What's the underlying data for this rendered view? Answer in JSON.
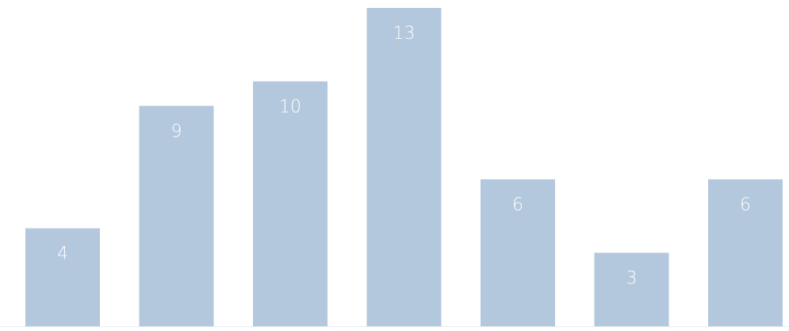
{
  "chart_data": {
    "type": "bar",
    "values": [
      4,
      9,
      10,
      13,
      6,
      3,
      6
    ],
    "color": "#b3c7dd",
    "ylim": [
      0,
      13
    ]
  }
}
